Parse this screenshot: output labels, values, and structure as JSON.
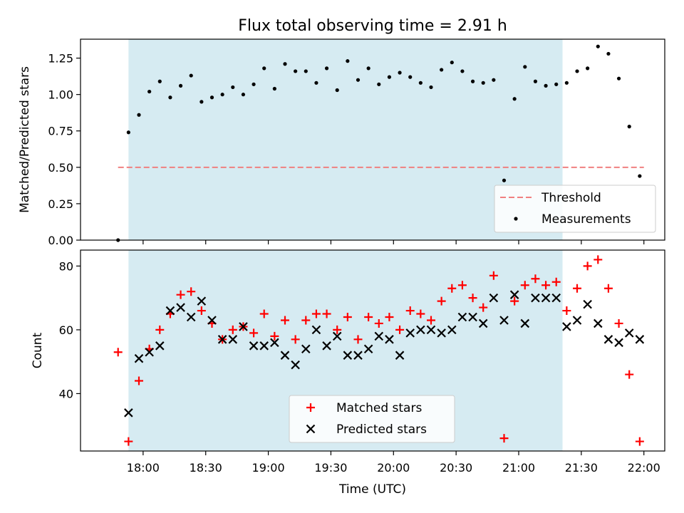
{
  "chart_data": {
    "title": "Flux total observing time = 2.91 h",
    "xlabel": "Time (UTC)",
    "x_ticks": [
      "18:00",
      "18:30",
      "19:00",
      "19:30",
      "20:00",
      "20:30",
      "21:00",
      "21:30",
      "22:00"
    ],
    "shaded_interval": [
      "17:53",
      "21:21"
    ],
    "panels": [
      {
        "type": "scatter",
        "ylabel": "Matched/Predicted stars",
        "ylim": [
          0,
          1.38
        ],
        "yticks": [
          "0.00",
          "0.25",
          "0.50",
          "0.75",
          "1.00",
          "1.25"
        ],
        "legend_position": "lower-right",
        "series": [
          {
            "name": "Threshold",
            "style": "dashed-line",
            "color": "#f08080",
            "x": [
              "17:48",
              "22:00"
            ],
            "y": [
              0.5,
              0.5
            ]
          },
          {
            "name": "Measurements",
            "style": "dot",
            "color": "#000000",
            "x": [
              "17:48",
              "17:53",
              "17:58",
              "18:03",
              "18:08",
              "18:13",
              "18:18",
              "18:23",
              "18:28",
              "18:33",
              "18:38",
              "18:43",
              "18:48",
              "18:53",
              "18:58",
              "19:03",
              "19:08",
              "19:13",
              "19:18",
              "19:23",
              "19:28",
              "19:33",
              "19:38",
              "19:43",
              "19:48",
              "19:53",
              "19:58",
              "20:03",
              "20:08",
              "20:13",
              "20:18",
              "20:23",
              "20:28",
              "20:33",
              "20:38",
              "20:43",
              "20:48",
              "20:53",
              "20:58",
              "21:03",
              "21:08",
              "21:13",
              "21:18",
              "21:23",
              "21:28",
              "21:33",
              "21:38",
              "21:43",
              "21:48",
              "21:53",
              "21:58"
            ],
            "y": [
              0.0,
              0.74,
              0.86,
              1.02,
              1.09,
              0.98,
              1.06,
              1.13,
              0.95,
              0.98,
              1.0,
              1.05,
              1.0,
              1.07,
              1.18,
              1.04,
              1.21,
              1.16,
              1.16,
              1.08,
              1.18,
              1.03,
              1.23,
              1.1,
              1.18,
              1.07,
              1.12,
              1.15,
              1.12,
              1.08,
              1.05,
              1.17,
              1.22,
              1.16,
              1.09,
              1.08,
              1.1,
              0.41,
              0.97,
              1.19,
              1.09,
              1.06,
              1.07,
              1.08,
              1.16,
              1.18,
              1.33,
              1.28,
              1.11,
              0.78,
              0.44
            ]
          }
        ]
      },
      {
        "type": "scatter",
        "ylabel": "Count",
        "ylim": [
          22,
          85
        ],
        "yticks": [
          "40",
          "60",
          "80"
        ],
        "legend_position": "lower-center",
        "series": [
          {
            "name": "Matched stars",
            "marker": "+",
            "color": "#ff0000",
            "x": [
              "17:48",
              "17:53",
              "17:58",
              "18:03",
              "18:08",
              "18:13",
              "18:18",
              "18:23",
              "18:28",
              "18:33",
              "18:38",
              "18:43",
              "18:48",
              "18:53",
              "18:58",
              "19:03",
              "19:08",
              "19:13",
              "19:18",
              "19:23",
              "19:28",
              "19:33",
              "19:38",
              "19:43",
              "19:48",
              "19:53",
              "19:58",
              "20:03",
              "20:08",
              "20:13",
              "20:18",
              "20:23",
              "20:28",
              "20:33",
              "20:38",
              "20:43",
              "20:48",
              "20:53",
              "20:58",
              "21:03",
              "21:08",
              "21:13",
              "21:18",
              "21:23",
              "21:28",
              "21:33",
              "21:38",
              "21:43",
              "21:48",
              "21:53",
              "21:58"
            ],
            "y": [
              53,
              25,
              44,
              54,
              60,
              65,
              71,
              72,
              66,
              62,
              57,
              60,
              61,
              59,
              65,
              58,
              63,
              57,
              63,
              65,
              65,
              60,
              64,
              57,
              64,
              62,
              64,
              60,
              66,
              65,
              63,
              69,
              73,
              74,
              70,
              67,
              77,
              26,
              69,
              74,
              76,
              74,
              75,
              66,
              73,
              80,
              82,
              73,
              62,
              46,
              25
            ]
          },
          {
            "name": "Predicted stars",
            "marker": "x",
            "color": "#000000",
            "x": [
              "17:53",
              "17:58",
              "18:03",
              "18:08",
              "18:13",
              "18:18",
              "18:23",
              "18:28",
              "18:33",
              "18:38",
              "18:43",
              "18:48",
              "18:53",
              "18:58",
              "19:03",
              "19:08",
              "19:13",
              "19:18",
              "19:23",
              "19:28",
              "19:33",
              "19:38",
              "19:43",
              "19:48",
              "19:53",
              "19:58",
              "20:03",
              "20:08",
              "20:13",
              "20:18",
              "20:23",
              "20:28",
              "20:33",
              "20:38",
              "20:43",
              "20:48",
              "20:53",
              "20:58",
              "21:03",
              "21:08",
              "21:13",
              "21:18",
              "21:23",
              "21:28",
              "21:33",
              "21:38",
              "21:43",
              "21:48",
              "21:53",
              "21:58"
            ],
            "y": [
              34,
              51,
              53,
              55,
              66,
              67,
              64,
              69,
              63,
              57,
              57,
              61,
              55,
              55,
              56,
              52,
              49,
              54,
              60,
              55,
              58,
              52,
              52,
              54,
              58,
              57,
              52,
              59,
              60,
              60,
              59,
              60,
              64,
              64,
              62,
              70,
              63,
              71,
              62,
              70,
              70,
              70,
              61,
              63,
              68,
              62,
              57,
              56,
              59,
              57
            ]
          }
        ]
      }
    ]
  }
}
